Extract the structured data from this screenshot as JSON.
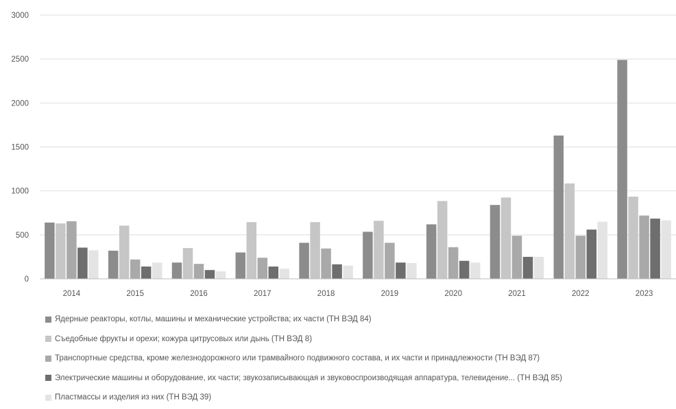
{
  "chart_data": {
    "type": "bar",
    "categories": [
      "2014",
      "2015",
      "2016",
      "2017",
      "2018",
      "2019",
      "2020",
      "2021",
      "2022",
      "2023"
    ],
    "series": [
      {
        "name": "Ядерные реакторы, котлы, машины и механические устройства; их части (ТН ВЭД 84)",
        "color": "#8c8c8c",
        "values": [
          640,
          320,
          185,
          300,
          410,
          535,
          620,
          840,
          1630,
          2490
        ]
      },
      {
        "name": "Съедобные фрукты и орехи; кожура цитрусовых или дынь (ТН ВЭД 8)",
        "color": "#c6c6c6",
        "values": [
          630,
          605,
          350,
          645,
          645,
          660,
          885,
          925,
          1085,
          935
        ]
      },
      {
        "name": "Транспортные средства, кроме железнодорожного или трамвайного подвижного состава, и их части и принадлежности (ТН ВЭД 87)",
        "color": "#a9a9a9",
        "values": [
          655,
          220,
          170,
          240,
          345,
          410,
          360,
          490,
          490,
          720
        ]
      },
      {
        "name": "Электрические машины и оборудование, их части; звукозаписывающая и звуковоспроизводящая аппаратура, телевидение... (ТН ВЭД 85)",
        "color": "#6e6e6e",
        "values": [
          355,
          140,
          100,
          140,
          165,
          185,
          205,
          250,
          560,
          685
        ]
      },
      {
        "name": "Пластмассы и изделия из них (ТН ВЭД 39)",
        "color": "#e4e4e4",
        "values": [
          325,
          185,
          85,
          115,
          150,
          180,
          185,
          250,
          650,
          665
        ]
      }
    ],
    "y_ticks": [
      "0",
      "500",
      "1000",
      "1500",
      "2000",
      "2500",
      "3000"
    ],
    "ylim": [
      0,
      3000
    ],
    "grid": true,
    "legend_position": "bottom"
  }
}
